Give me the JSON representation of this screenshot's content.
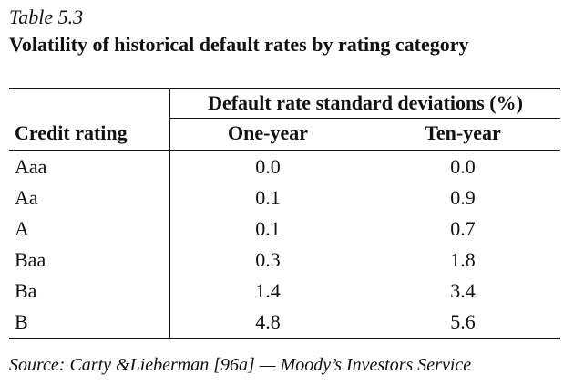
{
  "caption": "Table 5.3",
  "title": "Volatility of historical default rates by rating category",
  "table": {
    "group_header": "Default rate standard deviations (%)",
    "col_rating": "Credit rating",
    "col_one_year": "One-year",
    "col_ten_year": "Ten-year",
    "rows": [
      {
        "rating": "Aaa",
        "one_year": "0.0",
        "ten_year": "0.0"
      },
      {
        "rating": "Aa",
        "one_year": "0.1",
        "ten_year": "0.9"
      },
      {
        "rating": "A",
        "one_year": "0.1",
        "ten_year": "0.7"
      },
      {
        "rating": "Baa",
        "one_year": "0.3",
        "ten_year": "1.8"
      },
      {
        "rating": "Ba",
        "one_year": "1.4",
        "ten_year": "3.4"
      },
      {
        "rating": "B",
        "one_year": "4.8",
        "ten_year": "5.6"
      }
    ]
  },
  "source": "Source: Carty &Lieberman [96a] — Moody’s Investors Service"
}
